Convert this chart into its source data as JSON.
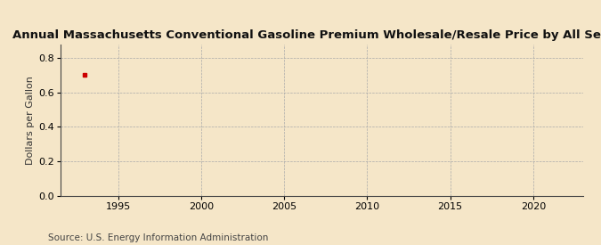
{
  "title": "Annual Massachusetts Conventional Gasoline Premium Wholesale/Resale Price by All Sellers",
  "ylabel": "Dollars per Gallon",
  "source": "Source: U.S. Energy Information Administration",
  "background_color": "#f5e6c8",
  "data_x": [
    1993.0
  ],
  "data_y": [
    0.704
  ],
  "data_color": "#cc0000",
  "xlim": [
    1991.5,
    2023.0
  ],
  "ylim": [
    0.0,
    0.88
  ],
  "yticks": [
    0.0,
    0.2,
    0.4,
    0.6,
    0.8
  ],
  "xticks": [
    1995,
    2000,
    2005,
    2010,
    2015,
    2020
  ],
  "grid_color": "#aaaaaa",
  "title_fontsize": 9.5,
  "ylabel_fontsize": 8,
  "tick_fontsize": 8,
  "source_fontsize": 7.5
}
